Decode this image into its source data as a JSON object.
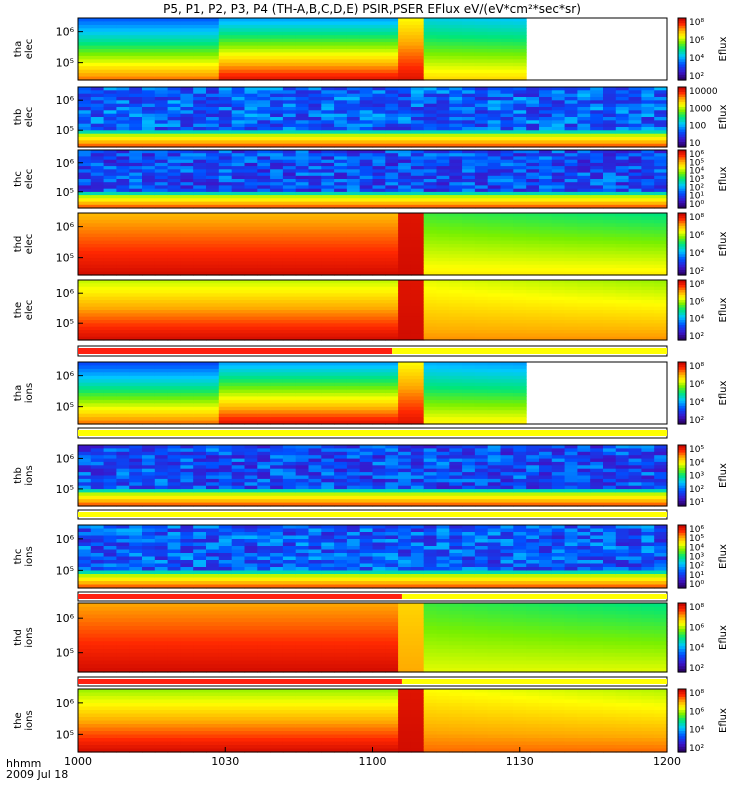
{
  "chart_data": {
    "type": "heatmap",
    "title": "P5, P1, P2, P3, P4 (TH-A,B,C,D,E) PSIR,PSER EFlux eV/(eV*cm²*sec*sr)",
    "xlabel_lines": [
      "hhmm",
      "2009 Jul 18"
    ],
    "x_ticks": [
      "1000",
      "1030",
      "1100",
      "1130",
      "1200"
    ],
    "x_range_minutes": [
      0,
      120
    ],
    "colormap": "rainbow",
    "panels": [
      {
        "id": "tha-elec",
        "label": [
          "tha",
          "elec"
        ],
        "y_ticks": [
          "10⁶",
          "10⁵"
        ],
        "cb_ticks": [
          "10⁸",
          "10⁶",
          "10⁴",
          "10²"
        ],
        "cb_label": "Eflux",
        "segments": [
          {
            "t0": 0,
            "t1": 28,
            "top": 0.25,
            "bot": 0.85,
            "noise": 0
          },
          {
            "t0": 28,
            "t1": 66,
            "top": 0.33,
            "bot": 0.95,
            "noise": 0
          },
          {
            "t0": 66,
            "t1": 70,
            "top": 0.7,
            "bot": 0.95,
            "noise": 0
          },
          {
            "t0": 70,
            "t1": 90,
            "top": 0.4,
            "bot": 0.75,
            "noise": 0
          }
        ],
        "gap_after": 90
      },
      {
        "id": "thb-elec",
        "label": [
          "thb",
          "elec"
        ],
        "y_ticks": [
          "10⁶",
          "10⁵"
        ],
        "cb_ticks": [
          "10000",
          "1000",
          "100",
          "10"
        ],
        "cb_label": "Eflux",
        "noisy": true,
        "base": 0.15,
        "band": [
          0.5,
          0.9
        ]
      },
      {
        "id": "thc-elec",
        "label": [
          "thc",
          "elec"
        ],
        "y_ticks": [
          "10⁶",
          "10⁵"
        ],
        "cb_ticks": [
          "10⁶",
          "10⁵",
          "10⁴",
          "10³",
          "10²",
          "10¹",
          "10⁰"
        ],
        "cb_label": "Eflux",
        "noisy": true,
        "base": 0.12,
        "band": [
          0.45,
          0.75
        ]
      },
      {
        "id": "thd-elec",
        "label": [
          "thd",
          "elec"
        ],
        "y_ticks": [
          "10⁶",
          "10⁵"
        ],
        "cb_ticks": [
          "10⁸",
          "10⁶",
          "10⁴",
          "10²"
        ],
        "cb_label": "Eflux",
        "segments": [
          {
            "t0": 0,
            "t1": 66,
            "top": 0.78,
            "bot": 0.97,
            "noise": 0
          },
          {
            "t0": 66,
            "t1": 70,
            "top": 0.95,
            "bot": 0.97,
            "noise": 0
          },
          {
            "t0": 70,
            "t1": 120,
            "top": 0.55,
            "bot": 0.72,
            "noise": 0
          }
        ]
      },
      {
        "id": "the-elec",
        "label": [
          "the",
          "elec"
        ],
        "y_ticks": [
          "10⁶",
          "10⁵"
        ],
        "cb_ticks": [
          "10⁸",
          "10⁶",
          "10⁴",
          "10²"
        ],
        "cb_label": "Eflux",
        "segments": [
          {
            "t0": 0,
            "t1": 66,
            "top": 0.65,
            "bot": 0.97,
            "noise": 0
          },
          {
            "t0": 66,
            "t1": 70,
            "top": 0.95,
            "bot": 0.97,
            "noise": 0
          },
          {
            "t0": 70,
            "t1": 120,
            "top": 0.68,
            "bot": 0.82,
            "noise": 0
          }
        ]
      },
      {
        "id": "tha-ions",
        "label": [
          "tha",
          "ions"
        ],
        "y_ticks": [
          "10⁶",
          "10⁵"
        ],
        "cb_ticks": [
          "10⁸",
          "10⁶",
          "10⁴",
          "10²"
        ],
        "cb_label": "Eflux",
        "segments": [
          {
            "t0": 0,
            "t1": 28,
            "top": 0.22,
            "bot": 0.85,
            "noise": 0
          },
          {
            "t0": 28,
            "t1": 66,
            "top": 0.33,
            "bot": 0.95,
            "noise": 0
          },
          {
            "t0": 66,
            "t1": 70,
            "top": 0.7,
            "bot": 0.95,
            "noise": 0
          },
          {
            "t0": 70,
            "t1": 90,
            "top": 0.35,
            "bot": 0.72,
            "noise": 0
          }
        ],
        "gap_after": 90
      },
      {
        "id": "thb-ions",
        "label": [
          "thb",
          "ions"
        ],
        "y_ticks": [
          "10⁶",
          "10⁵"
        ],
        "cb_ticks": [
          "10⁵",
          "10⁴",
          "10³",
          "10²",
          "10¹"
        ],
        "cb_label": "Eflux",
        "noisy": true,
        "base": 0.12,
        "band": [
          0.45,
          0.65
        ]
      },
      {
        "id": "thc-ions",
        "label": [
          "thc",
          "ions"
        ],
        "y_ticks": [
          "10⁶",
          "10⁵"
        ],
        "cb_ticks": [
          "10⁶",
          "10⁵",
          "10⁴",
          "10³",
          "10²",
          "10¹",
          "10⁰"
        ],
        "cb_label": "Eflux",
        "noisy": true,
        "base": 0.14,
        "band": [
          0.5,
          0.8
        ]
      },
      {
        "id": "thd-ions",
        "label": [
          "thd",
          "ions"
        ],
        "y_ticks": [
          "10⁶",
          "10⁵"
        ],
        "cb_ticks": [
          "10⁸",
          "10⁶",
          "10⁴",
          "10²"
        ],
        "cb_label": "Eflux",
        "segments": [
          {
            "t0": 0,
            "t1": 66,
            "top": 0.8,
            "bot": 0.97,
            "noise": 0
          },
          {
            "t0": 66,
            "t1": 70,
            "top": 0.75,
            "bot": 0.8,
            "noise": 0
          },
          {
            "t0": 70,
            "t1": 120,
            "top": 0.55,
            "bot": 0.68,
            "noise": 0
          }
        ]
      },
      {
        "id": "the-ions",
        "label": [
          "the",
          "ions"
        ],
        "y_ticks": [
          "10⁶",
          "10⁵"
        ],
        "cb_ticks": [
          "10⁸",
          "10⁶",
          "10⁴",
          "10²"
        ],
        "cb_label": "Eflux",
        "segments": [
          {
            "t0": 0,
            "t1": 66,
            "top": 0.62,
            "bot": 0.97,
            "noise": 0
          },
          {
            "t0": 66,
            "t1": 70,
            "top": 0.95,
            "bot": 0.97,
            "noise": 0
          },
          {
            "t0": 70,
            "t1": 120,
            "top": 0.7,
            "bot": 0.85,
            "noise": 0
          }
        ]
      }
    ],
    "mode_bars": [
      {
        "after_panel": "the-elec",
        "red_until": 64
      },
      {
        "after_panel": "tha-ions",
        "red_until": 0
      },
      {
        "after_panel": "thb-ions",
        "red_until": 0
      },
      {
        "after_panel": "thc-ions",
        "red_until": 66
      },
      {
        "after_panel": "thd-ions",
        "red_until": 66
      }
    ]
  }
}
